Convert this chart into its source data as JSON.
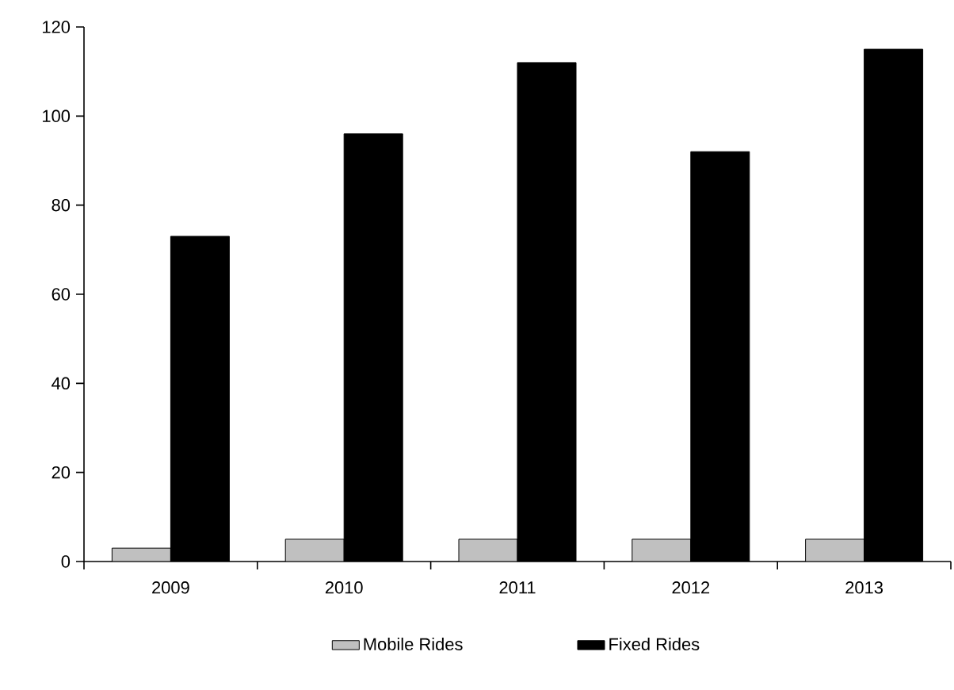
{
  "chart_data": {
    "type": "bar",
    "categories": [
      "2009",
      "2010",
      "2011",
      "2012",
      "2013"
    ],
    "series": [
      {
        "name": "Mobile Rides",
        "color": "#c0c0c0",
        "values": [
          3,
          5,
          5,
          5,
          5
        ]
      },
      {
        "name": "Fixed Rides",
        "color": "#000000",
        "values": [
          73,
          96,
          112,
          92,
          115
        ]
      }
    ],
    "ylim": [
      0,
      120
    ],
    "yticks": [
      0,
      20,
      40,
      60,
      80,
      100,
      120
    ],
    "legend": "bottom"
  }
}
